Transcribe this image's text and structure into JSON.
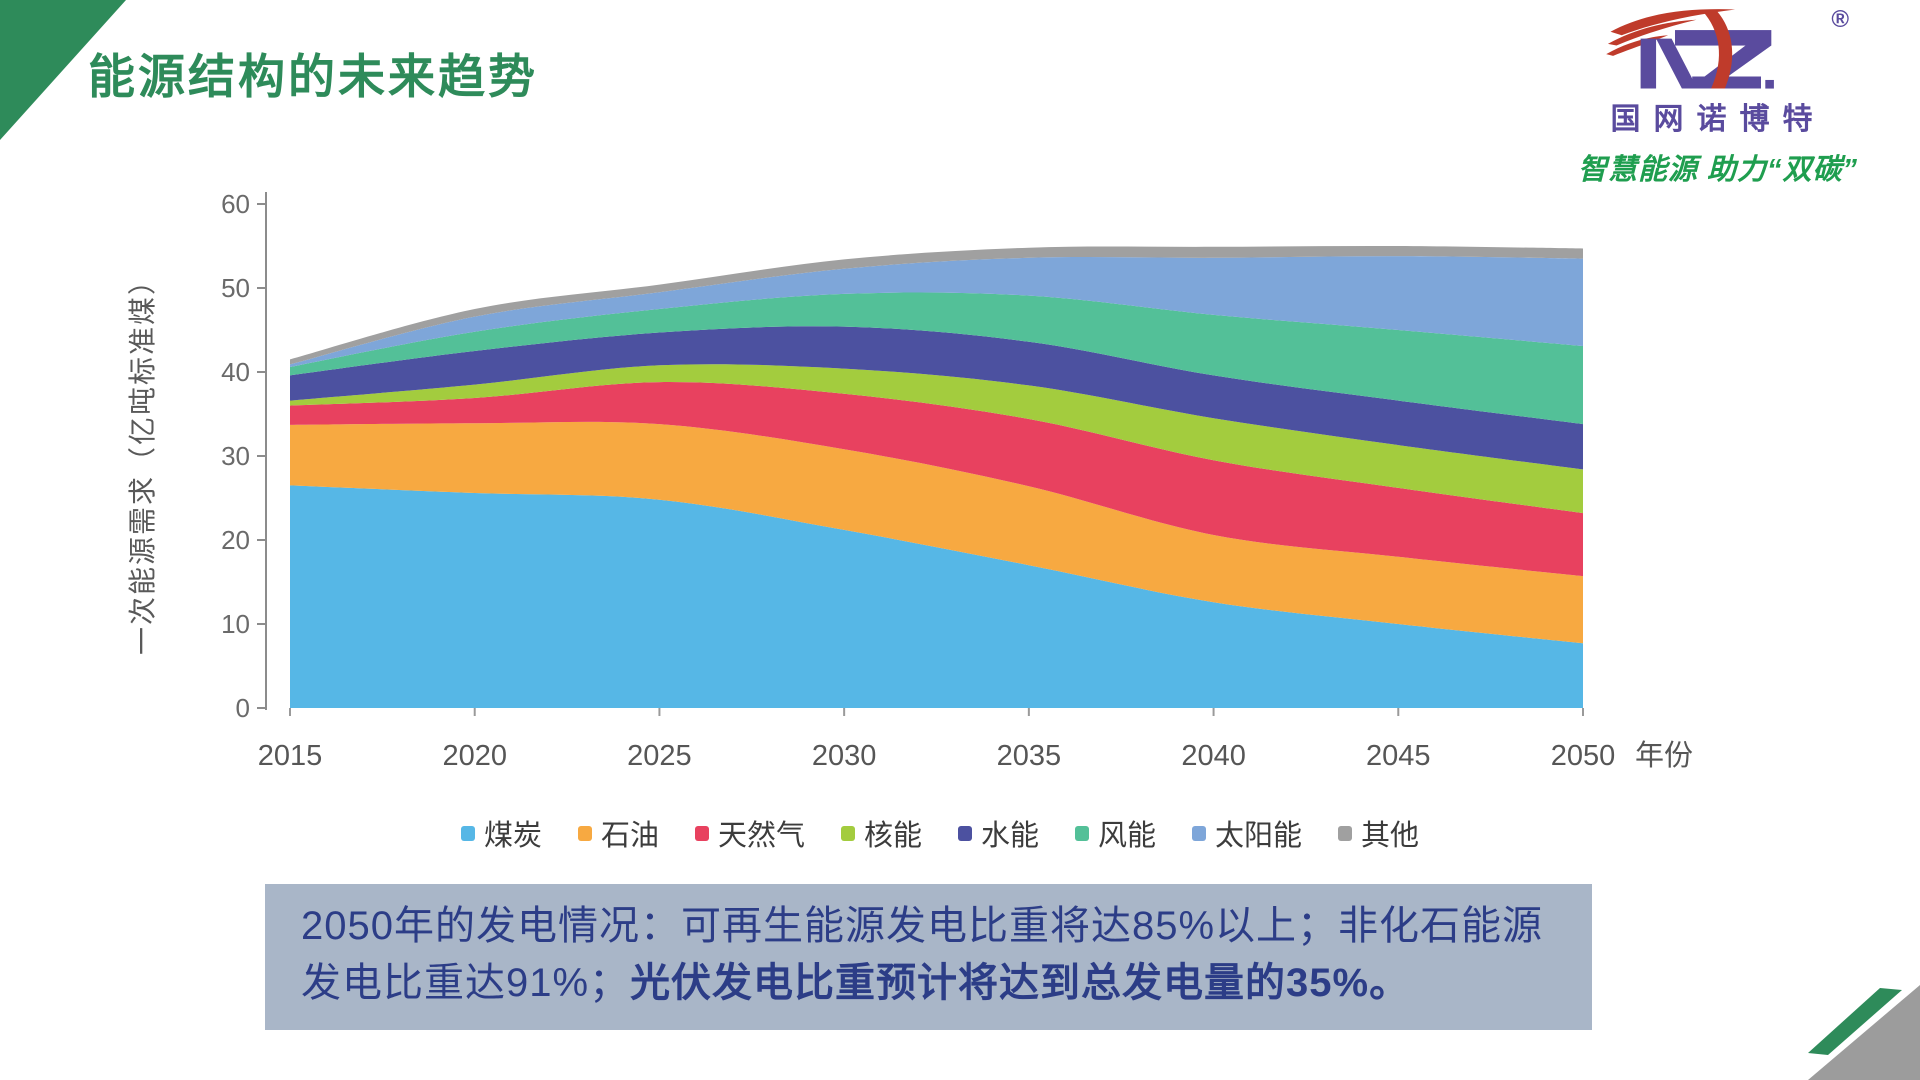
{
  "slide": {
    "title": "能源结构的未来趋势"
  },
  "logo": {
    "brand": "国网诺博特",
    "slogan": "智慧能源 助力“双碳”",
    "registered": "®"
  },
  "colors": {
    "accent_green": "#2e8b5a",
    "logo_purple": "#5a4b9e",
    "logo_red": "#bf3b2b",
    "callout_bg": "#a9b6c8",
    "callout_text": "#2c3d87",
    "corner_gray": "#9c9c9c"
  },
  "callout": {
    "text_normal": "2050年的发电情况：可再生能源发电比重将达85%以上；非化石能源发电比重达91%；",
    "text_bold": "光伏发电比重预计将达到总发电量的35%。"
  },
  "chart_data": {
    "type": "area",
    "stacked": true,
    "x": [
      2015,
      2020,
      2025,
      2030,
      2035,
      2040,
      2045,
      2050
    ],
    "x_tick_labels": [
      "2015",
      "2020",
      "2025",
      "2030",
      "2035",
      "2040",
      "2045",
      "2050"
    ],
    "xlabel": "年份",
    "ylabel": "一次能源需求（亿吨标准煤）",
    "ylim": [
      0,
      60
    ],
    "y_ticks": [
      0,
      10,
      20,
      30,
      40,
      50,
      60
    ],
    "grid": false,
    "legend_position": "bottom",
    "series": [
      {
        "name": "煤炭",
        "color": "#56b7e6",
        "values": [
          26.5,
          25.6,
          24.8,
          21.2,
          17.0,
          12.6,
          10.0,
          7.7
        ]
      },
      {
        "name": "石油",
        "color": "#f7a941",
        "values": [
          7.2,
          8.3,
          9.0,
          9.6,
          9.4,
          8.0,
          8.0,
          8.0
        ]
      },
      {
        "name": "天然气",
        "color": "#e8415f",
        "values": [
          2.3,
          3.0,
          5.0,
          6.6,
          8.0,
          8.9,
          8.2,
          7.5
        ]
      },
      {
        "name": "核能",
        "color": "#a3cc3e",
        "values": [
          0.6,
          1.6,
          2.0,
          3.0,
          4.0,
          5.0,
          5.1,
          5.2
        ]
      },
      {
        "name": "水能",
        "color": "#4c51a0",
        "values": [
          3.0,
          4.0,
          3.9,
          5.0,
          5.2,
          5.1,
          5.3,
          5.4
        ]
      },
      {
        "name": "风能",
        "color": "#53c098",
        "values": [
          1.0,
          2.3,
          2.8,
          3.9,
          5.5,
          7.2,
          8.4,
          9.3
        ]
      },
      {
        "name": "太阳能",
        "color": "#7ea6d9",
        "values": [
          0.3,
          1.8,
          2.0,
          3.0,
          4.5,
          6.8,
          8.8,
          10.4
        ]
      },
      {
        "name": "其他",
        "color": "#a0a0a0",
        "values": [
          0.6,
          0.9,
          0.9,
          1.1,
          1.2,
          1.3,
          1.2,
          1.2
        ]
      }
    ]
  }
}
